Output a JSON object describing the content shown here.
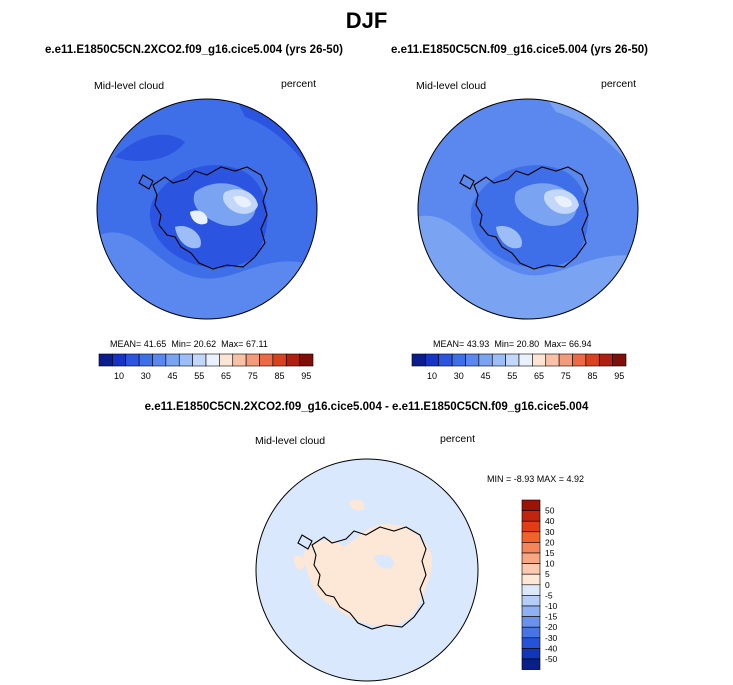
{
  "title": "DJF",
  "panels": [
    {
      "id": "top-left",
      "case": "e.e11.E1850C5CN.2XCO2.f09_g16.cice5.004 (yrs 26-50)",
      "variable": "Mid-level cloud",
      "units": "percent",
      "mean_label": "MEAN=",
      "mean": "41.65",
      "min_label": "Min=",
      "min": "20.62",
      "max_label": "Max=",
      "max": "67.11"
    },
    {
      "id": "top-right",
      "case": "e.e11.E1850C5CN.f09_g16.cice5.004 (yrs 26-50)",
      "variable": "Mid-level cloud",
      "units": "percent",
      "mean_label": "MEAN=",
      "mean": "43.93",
      "min_label": "Min=",
      "min": "20.80",
      "max_label": "Max=",
      "max": "66.94"
    }
  ],
  "difference": {
    "title": "e.e11.E1850C5CN.2XCO2.f09_g16.cice5.004 - e.e11.E1850C5CN.f09_g16.cice5.004",
    "variable": "Mid-level cloud",
    "units": "percent",
    "minmax_text": "MIN = -8.93 MAX = 4.92"
  },
  "colorbar_abs": {
    "labels": [
      "10",
      "30",
      "45",
      "55",
      "65",
      "75",
      "85",
      "95"
    ],
    "colors": [
      "#0b1d8c",
      "#1633c4",
      "#2b55e0",
      "#3f6fe8",
      "#5a88ee",
      "#7aa3f2",
      "#9cbdf6",
      "#c2d7fa",
      "#e9f1fd",
      "#fde5d6",
      "#f9c2a6",
      "#f29b78",
      "#e96a45",
      "#d8421f",
      "#b02010",
      "#7f0d08"
    ]
  },
  "colorbar_diff": {
    "labels": [
      "50",
      "40",
      "30",
      "20",
      "15",
      "10",
      "5",
      "0",
      "-5",
      "-10",
      "-15",
      "-20",
      "-30",
      "-40",
      "-50"
    ],
    "colors": [
      "#9c1308",
      "#c1240f",
      "#e03c17",
      "#f2622b",
      "#f5855a",
      "#f8a785",
      "#fbcaae",
      "#fde7d6",
      "#dce9fb",
      "#b6cdf7",
      "#8fb0f2",
      "#6a92ec",
      "#4874e6",
      "#2652d8",
      "#1236b7",
      "#0a1f8a"
    ]
  },
  "maps": {
    "ocean_colors": [
      "#3f6fe8",
      "#5a88ee",
      "#2b55e0",
      "#7aa3f2",
      "#9cbdf6",
      "#e9f1fd"
    ],
    "diff_background": "#d9e8fc",
    "diff_positive": "#fde7d6"
  }
}
